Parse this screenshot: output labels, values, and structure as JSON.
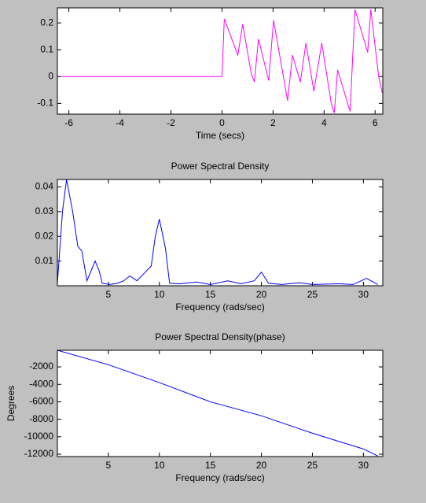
{
  "chart_data": [
    {
      "type": "line",
      "xlabel": "Time (secs)",
      "color": "#ff00ff",
      "x": [
        -6.28,
        0,
        0.09,
        0.62,
        0.81,
        1.15,
        1.27,
        1.43,
        1.83,
        2.02,
        2.57,
        2.76,
        3.07,
        3.29,
        3.6,
        3.91,
        4.28,
        4.4,
        4.53,
        5.02,
        5.21,
        5.71,
        5.83,
        6.14,
        6.28
      ],
      "values": [
        0,
        0,
        0.215,
        0.08,
        0.195,
        0.01,
        -0.02,
        0.14,
        -0.015,
        0.21,
        -0.09,
        0.08,
        -0.02,
        0.125,
        -0.055,
        0.125,
        -0.1,
        -0.135,
        0.025,
        -0.13,
        0.25,
        0.09,
        0.25,
        0,
        -0.06
      ],
      "xlim": [
        -6.45,
        6.3
      ],
      "ylim": [
        -0.14,
        0.256
      ],
      "xticks": [
        -6,
        -4,
        -2,
        0,
        2,
        4,
        6
      ],
      "yticks": [
        -0.1,
        0,
        0.1,
        0.2
      ]
    },
    {
      "type": "line",
      "title": "Power Spectral Density",
      "xlabel": "Frequency (rads/sec)",
      "color": "#0000ff",
      "x": [
        0,
        0.5,
        0.9,
        1.5,
        2,
        2.4,
        2.9,
        3.3,
        3.7,
        4.1,
        4.4,
        5.1,
        5.9,
        6.5,
        7.1,
        7.8,
        8.5,
        9.2,
        9.6,
        10,
        10.6,
        11,
        12,
        13.7,
        15,
        16.7,
        18,
        19.3,
        20,
        20.7,
        22,
        23.7,
        25,
        27.6,
        29,
        30.3,
        31.4
      ],
      "values": [
        0.001,
        0.03,
        0.043,
        0.03,
        0.016,
        0.014,
        0.002,
        0.006,
        0.01,
        0.006,
        0.001,
        0.0005,
        0.001,
        0.002,
        0.004,
        0.002,
        0.005,
        0.008,
        0.02,
        0.027,
        0.015,
        0.001,
        0.0008,
        0.0015,
        0.0005,
        0.002,
        0.0008,
        0.002,
        0.0055,
        0.001,
        0.0005,
        0.0012,
        0.0005,
        0.0008,
        0.0005,
        0.003,
        0.0005
      ],
      "xlim": [
        0,
        31.9
      ],
      "ylim": [
        0,
        0.043
      ],
      "xticks": [
        5,
        10,
        15,
        20,
        25,
        30
      ],
      "yticks": [
        0.01,
        0.02,
        0.03,
        0.04
      ]
    },
    {
      "type": "line",
      "title": "Power Spectral Density(phase)",
      "xlabel": "Frequency (rads/sec)",
      "ylabel": "Degrees",
      "color": "#0000ff",
      "x": [
        0,
        5,
        10,
        15,
        20,
        25,
        30,
        31.4
      ],
      "values": [
        -100,
        -1750,
        -3800,
        -6000,
        -7600,
        -9600,
        -11400,
        -12200
      ],
      "xlim": [
        0,
        31.9
      ],
      "ylim": [
        -12270,
        -100
      ],
      "xticks": [
        5,
        10,
        15,
        20,
        25,
        30
      ],
      "yticks": [
        -12000,
        -10000,
        -8000,
        -6000,
        -4000,
        -2000
      ]
    }
  ]
}
